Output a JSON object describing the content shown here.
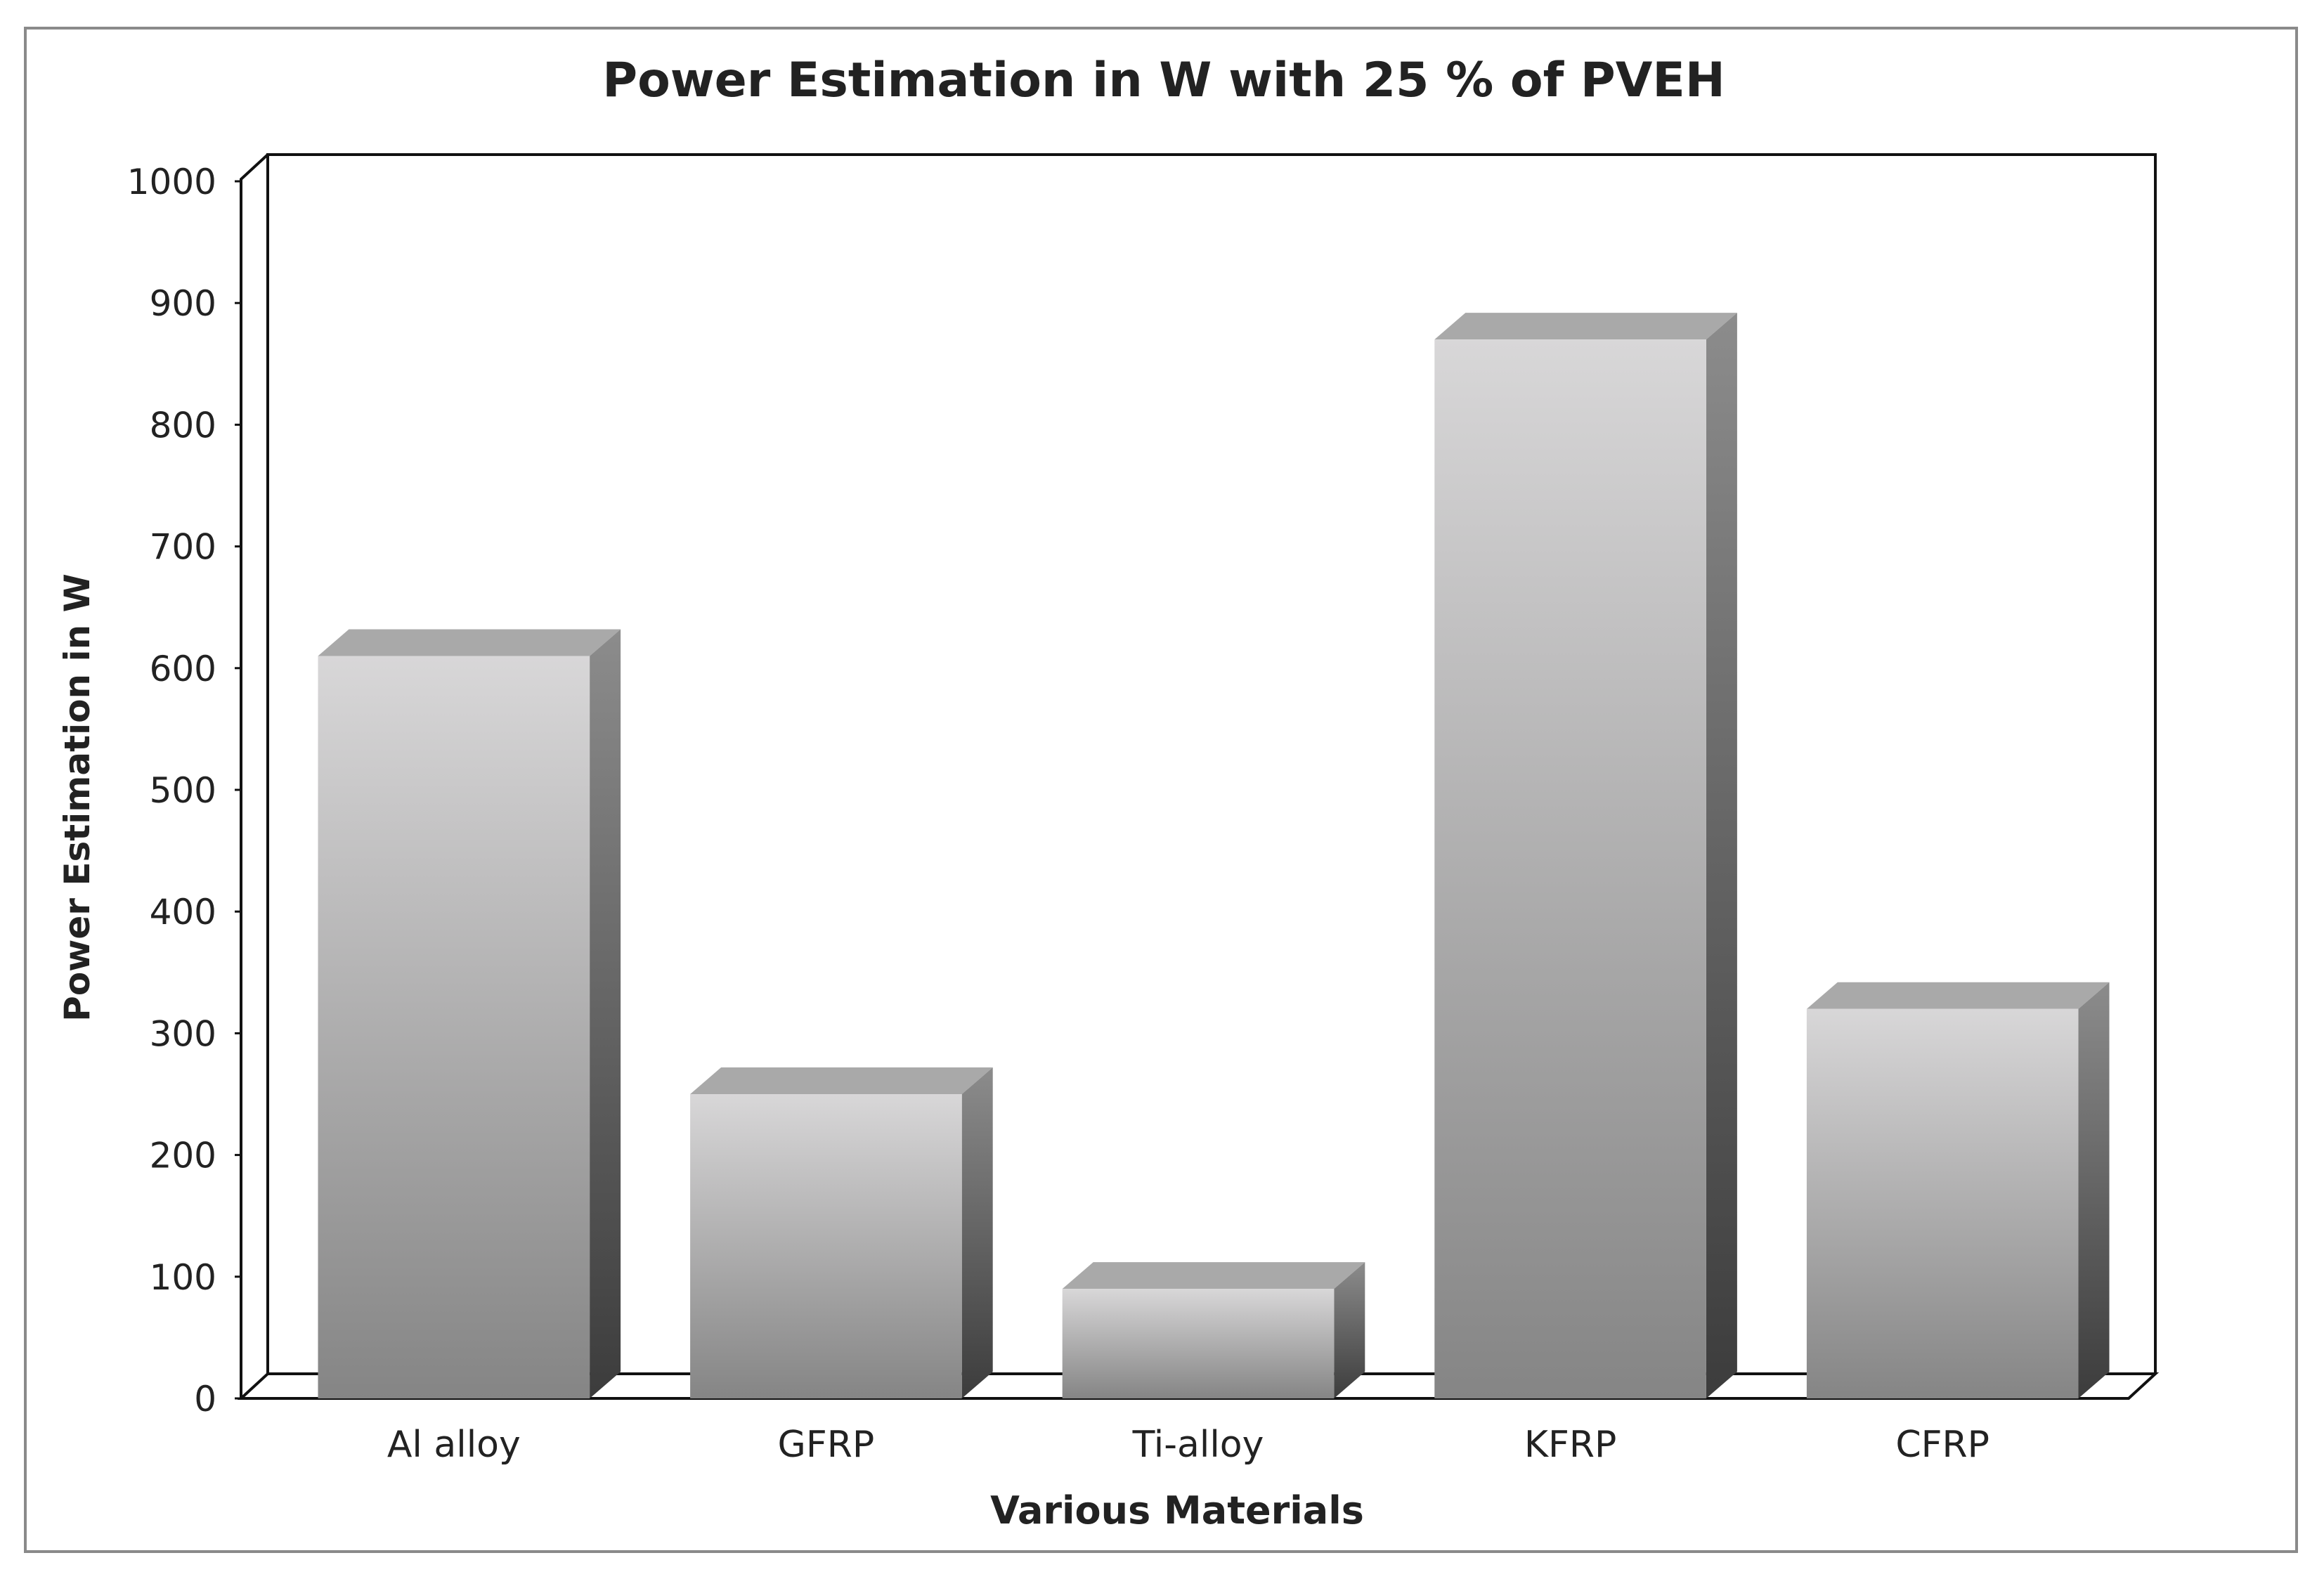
{
  "chart_data": {
    "type": "bar",
    "title": "Power Estimation in W with 25 % of PVEH",
    "xlabel": "Various Materials",
    "ylabel": "Power Estimation in W",
    "categories": [
      "Al alloy",
      "GFRP",
      "Ti-alloy",
      "KFRP",
      "CFRP"
    ],
    "values": [
      610,
      250,
      90,
      870,
      320
    ],
    "ylim": [
      0,
      1000
    ],
    "yticks": [
      "0",
      "100",
      "200",
      "300",
      "400",
      "500",
      "600",
      "700",
      "800",
      "900",
      "1000"
    ],
    "style": "3d-box",
    "grid": false,
    "legend": "none",
    "colors": {
      "bar_top_light": "#d8d7d8",
      "bar_bottom_dark": "#858585",
      "bar_side_top": "#8c8c8c",
      "bar_side_bottom": "#3c3c3c",
      "bar_cap": "#a9a9a9",
      "text": "#222222",
      "frame": "#8a8a8a"
    }
  }
}
